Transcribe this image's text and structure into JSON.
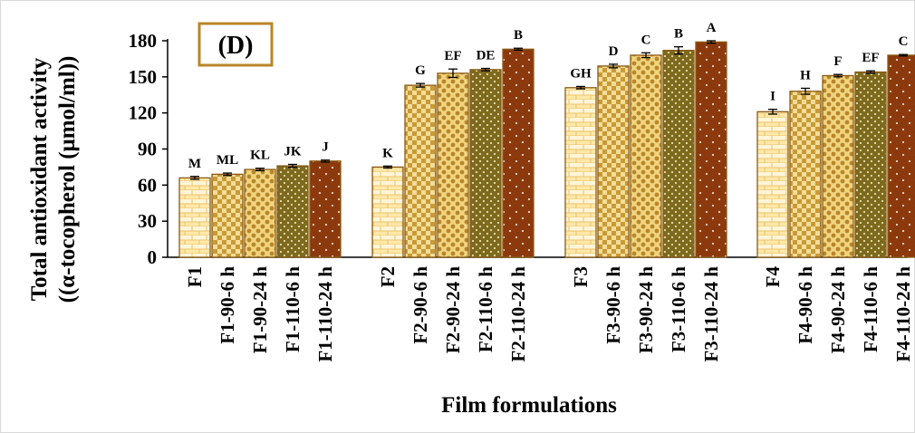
{
  "chart_data": {
    "type": "bar",
    "panel_label": "(D)",
    "xlabel": "Film formulations",
    "ylabel_line1": "Total antioxidant activity",
    "ylabel_line2": "((α-tocopherol (μmol/ml))",
    "ylim": [
      0,
      180
    ],
    "yticks": [
      "0",
      "30",
      "60",
      "90",
      "120",
      "150",
      "180"
    ],
    "grid": false,
    "groups": [
      {
        "name": "F1",
        "bars": [
          {
            "label": "F1",
            "value": 66,
            "error": 1.2,
            "letter": "M",
            "pattern": "brick"
          },
          {
            "label": "F1-90-6 h",
            "value": 69,
            "error": 1.0,
            "letter": "ML",
            "pattern": "check"
          },
          {
            "label": "F1-90-24 h",
            "value": 73,
            "error": 1.0,
            "letter": "KL",
            "pattern": "cross"
          },
          {
            "label": "F1-110-6 h",
            "value": 76,
            "error": 1.2,
            "letter": "JK",
            "pattern": "dots-olive"
          },
          {
            "label": "F1-110-24 h",
            "value": 80,
            "error": 0.8,
            "letter": "J",
            "pattern": "dots-brown"
          }
        ]
      },
      {
        "name": "F2",
        "bars": [
          {
            "label": "F2",
            "value": 75,
            "error": 0.8,
            "letter": "K",
            "pattern": "brick"
          },
          {
            "label": "F2-90-6 h",
            "value": 143,
            "error": 1.5,
            "letter": "G",
            "pattern": "check"
          },
          {
            "label": "F2-90-24 h",
            "value": 153,
            "error": 3.5,
            "letter": "EF",
            "pattern": "cross"
          },
          {
            "label": "F2-110-6 h",
            "value": 156,
            "error": 1.0,
            "letter": "DE",
            "pattern": "dots-olive"
          },
          {
            "label": "F2-110-24 h",
            "value": 173,
            "error": 0.8,
            "letter": "B",
            "pattern": "dots-brown"
          }
        ]
      },
      {
        "name": "F3",
        "bars": [
          {
            "label": "F3",
            "value": 141,
            "error": 1.0,
            "letter": "GH",
            "pattern": "brick"
          },
          {
            "label": "F3-90-6 h",
            "value": 159,
            "error": 1.5,
            "letter": "D",
            "pattern": "check"
          },
          {
            "label": "F3-90-24 h",
            "value": 168,
            "error": 2.0,
            "letter": "C",
            "pattern": "cross"
          },
          {
            "label": "F3-110-6 h",
            "value": 172,
            "error": 3.0,
            "letter": "B",
            "pattern": "dots-olive"
          },
          {
            "label": "F3-110-24 h",
            "value": 179,
            "error": 1.0,
            "letter": "A",
            "pattern": "dots-brown"
          }
        ]
      },
      {
        "name": "F4",
        "bars": [
          {
            "label": "F4",
            "value": 121,
            "error": 2.0,
            "letter": "I",
            "pattern": "brick"
          },
          {
            "label": "F4-90-6 h",
            "value": 138,
            "error": 2.5,
            "letter": "H",
            "pattern": "check"
          },
          {
            "label": "F4-90-24 h",
            "value": 151,
            "error": 1.0,
            "letter": "F",
            "pattern": "cross"
          },
          {
            "label": "F4-110-6 h",
            "value": 154,
            "error": 1.0,
            "letter": "EF",
            "pattern": "dots-olive"
          },
          {
            "label": "F4-110-24 h",
            "value": 168,
            "error": 0.6,
            "letter": "C",
            "pattern": "dots-brown"
          }
        ]
      }
    ]
  }
}
